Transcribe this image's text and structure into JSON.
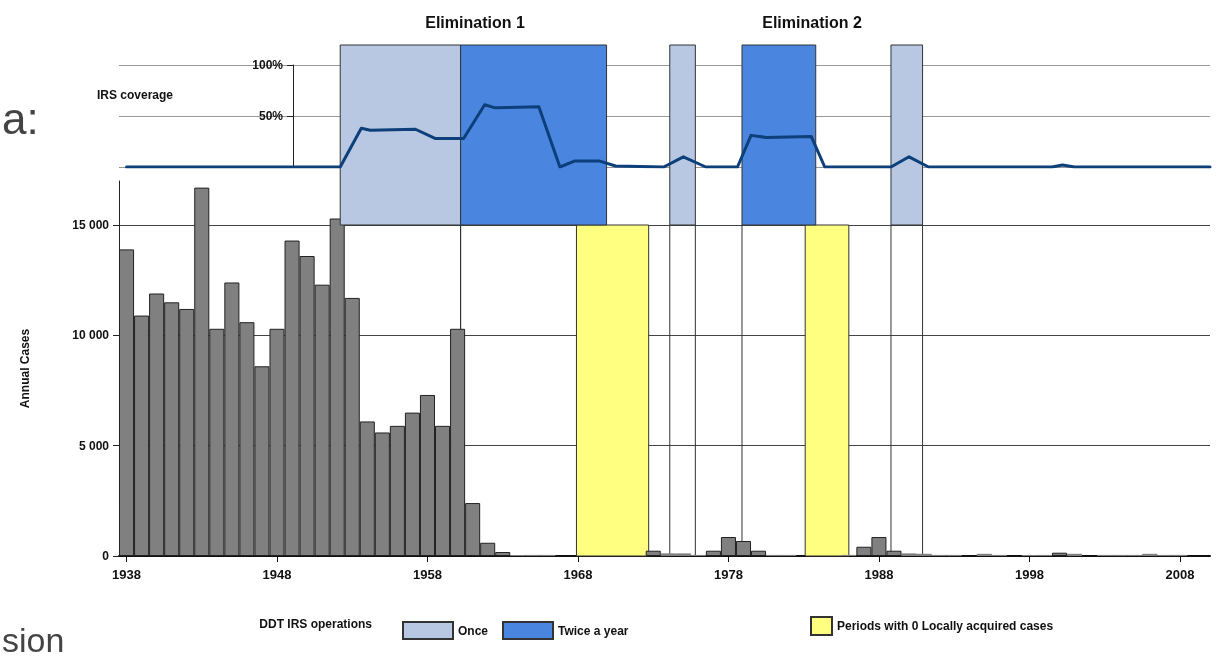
{
  "chart_data": [
    {
      "type": "line",
      "ylabel": "IRS coverage",
      "legend_title": "DDT IRS operations",
      "legend": "bottom",
      "marker": "none",
      "line_style": "solid",
      "grid": true,
      "tick_labels": "y",
      "annotations": [
        "Elimination 1",
        "Elimination 2",
        "a:",
        "sion"
      ],
      "xlim": [
        1937.5,
        2010
      ],
      "ylim": [
        0,
        100
      ],
      "yticks": [
        {
          "value": 0,
          "label": null
        },
        {
          "value": 50,
          "label": "50%"
        },
        {
          "value": 100,
          "label": "100%"
        }
      ],
      "series": [
        {
          "color": "#0d3f7a",
          "x": [
            1938,
            1952.2,
            1953.6,
            1954.2,
            1957.2,
            1958.5,
            1960.4,
            1961.8,
            1962.5,
            1965.4,
            1966.8,
            1967.8,
            1969.4,
            1970.5,
            1973.7,
            1975.0,
            1976.5,
            1978.6,
            1979.5,
            1980.5,
            1983.5,
            1984.4,
            1988.8,
            1990.0,
            1991.3,
            1999.5,
            2000.2,
            2001,
            2010
          ],
          "values": [
            0,
            0,
            38,
            36,
            37,
            28,
            28,
            61,
            58,
            59,
            0,
            6,
            6,
            1,
            0,
            10,
            0,
            0,
            31,
            29,
            30,
            0,
            0,
            10,
            0,
            0,
            2,
            0,
            0
          ]
        }
      ],
      "bands": [
        {
          "axis": "x",
          "from": 1952.2,
          "to": 1960.2,
          "color": "#b8c7e2",
          "label": "Once"
        },
        {
          "axis": "x",
          "from": 1960.2,
          "to": 1969.9,
          "color": "#4a86e0",
          "label": "Twice a year"
        },
        {
          "axis": "x",
          "from": 1974.1,
          "to": 1975.8,
          "color": "#b8c7e2"
        },
        {
          "axis": "x",
          "from": 1978.9,
          "to": 1983.8,
          "color": "#4a86e0"
        },
        {
          "axis": "x",
          "from": 1988.8,
          "to": 1990.9,
          "color": "#b8c7e2"
        }
      ]
    },
    {
      "type": "bar",
      "ylabel": "Annual Cases",
      "legend": "bottom",
      "grid": "y",
      "color": "#808080",
      "x": [
        1938,
        1939,
        1940,
        1941,
        1942,
        1943,
        1944,
        1945,
        1946,
        1947,
        1948,
        1949,
        1950,
        1951,
        1952,
        1953,
        1954,
        1955,
        1956,
        1957,
        1958,
        1959,
        1960,
        1961,
        1962,
        1963,
        1964,
        1965,
        1966,
        1967,
        1968,
        1969,
        1970,
        1971,
        1972,
        1973,
        1974,
        1975,
        1976,
        1977,
        1978,
        1979,
        1980,
        1981,
        1982,
        1983,
        1984,
        1985,
        1986,
        1987,
        1988,
        1989,
        1990,
        1991,
        1992,
        1993,
        1994,
        1995,
        1996,
        1997,
        1998,
        1999,
        2000,
        2001,
        2002,
        2003,
        2004,
        2005,
        2006,
        2007,
        2008
      ],
      "values": [
        13900,
        10900,
        11900,
        11500,
        11200,
        16700,
        10300,
        12400,
        10600,
        8600,
        10300,
        14300,
        13600,
        12300,
        15300,
        11700,
        6100,
        5600,
        5900,
        6500,
        7300,
        5900,
        10300,
        2400,
        600,
        180,
        50,
        50,
        50,
        0,
        0,
        0,
        0,
        0,
        0,
        240,
        120,
        120,
        50,
        240,
        860,
        680,
        240,
        50,
        50,
        0,
        0,
        0,
        50,
        420,
        860,
        240,
        120,
        100,
        50,
        50,
        0,
        100,
        50,
        0,
        50,
        50,
        150,
        100,
        0,
        50,
        50,
        50,
        100,
        50,
        50
      ],
      "xlim": [
        1937.5,
        2010
      ],
      "xticks": [
        1938,
        1948,
        1958,
        1968,
        1978,
        1988,
        1998,
        2008
      ],
      "ylim": [
        0,
        17000
      ],
      "yticks": [
        0,
        {
          "value": 5000,
          "label": "5 000"
        },
        {
          "value": 10000,
          "label": "10 000"
        },
        {
          "value": 15000,
          "label": "15 000"
        }
      ],
      "bands": [
        {
          "axis": "x",
          "from": 1967.9,
          "to": 1972.7,
          "color": "#ffff80",
          "label": "Periods with 0 Locally acquired cases"
        },
        {
          "axis": "x",
          "from": 1983.1,
          "to": 1986.0,
          "color": "#ffff80"
        }
      ]
    }
  ]
}
